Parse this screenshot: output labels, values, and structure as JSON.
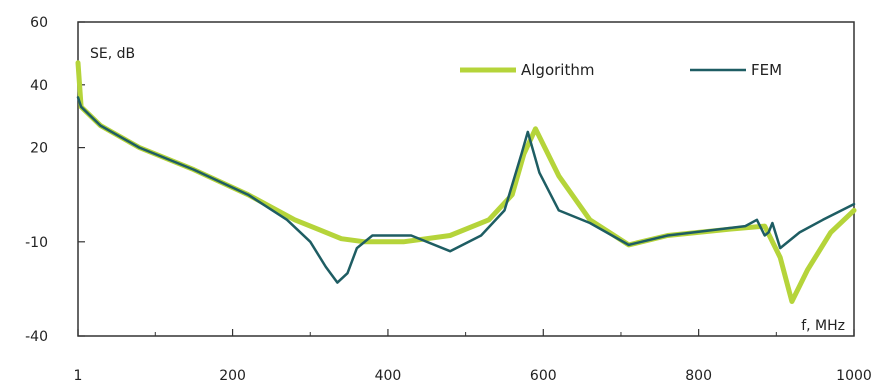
{
  "chart_data": {
    "type": "line",
    "ylabel": "SE, dB",
    "xlabel": "f, MHz",
    "xlim": [
      1,
      1000
    ],
    "ylim": [
      -40,
      60
    ],
    "xticks": [
      1,
      200,
      400,
      600,
      800,
      1000
    ],
    "xtick_labels": [
      "1",
      "200",
      "400",
      "600",
      "800",
      "1000"
    ],
    "yticks": [
      60,
      40,
      20,
      -10,
      -40
    ],
    "ytick_labels": [
      "60",
      "40",
      "20",
      "-10",
      "-40"
    ],
    "grid": false,
    "legend_position": "top-right",
    "series": [
      {
        "name": "Algorithm",
        "color": "#b5d43a",
        "x": [
          1,
          5,
          30,
          80,
          150,
          220,
          280,
          310,
          340,
          370,
          420,
          480,
          530,
          560,
          575,
          590,
          620,
          660,
          710,
          760,
          840,
          885,
          905,
          920,
          940,
          970,
          1000
        ],
        "y": [
          47,
          33,
          27,
          20,
          13,
          5,
          -3,
          -6,
          -9,
          -10,
          -10,
          -8,
          -3,
          5,
          18,
          26,
          11,
          -3,
          -11,
          -8,
          -6,
          -5,
          -15,
          -29,
          -19,
          -7,
          0
        ]
      },
      {
        "name": "FEM",
        "color": "#1e5d63",
        "x": [
          1,
          5,
          30,
          80,
          150,
          220,
          270,
          300,
          320,
          335,
          348,
          360,
          380,
          430,
          480,
          520,
          550,
          572,
          580,
          595,
          620,
          660,
          710,
          760,
          860,
          875,
          885,
          890,
          895,
          905,
          930,
          960,
          1000
        ],
        "y": [
          36,
          33,
          27,
          20,
          13,
          5,
          -3,
          -10,
          -18,
          -23,
          -20,
          -12,
          -8,
          -8,
          -13,
          -8,
          0,
          18,
          25,
          12,
          0,
          -4,
          -11,
          -8,
          -5,
          -3,
          -8,
          -7,
          -4,
          -12,
          -7,
          -3,
          2
        ]
      }
    ]
  }
}
